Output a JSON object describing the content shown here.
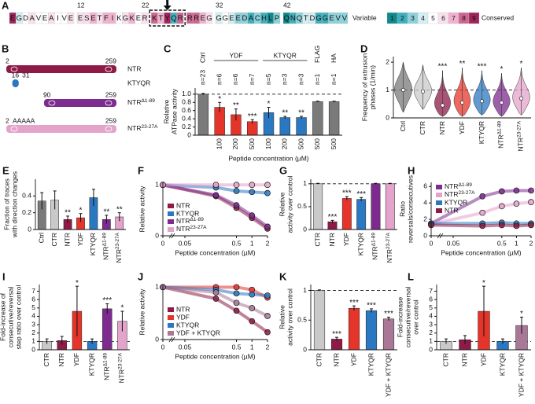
{
  "sequence": {
    "panel": "A",
    "residues": "EGDAVEAIVEESETFIKGKERKTYQRRREGGGEEDACHLPQNQTDGGEVV",
    "scores": [
      9,
      4,
      5,
      6,
      5,
      5,
      6,
      5,
      5,
      6,
      6,
      6,
      7,
      6,
      7,
      7,
      5,
      6,
      7,
      5,
      6,
      8,
      7,
      9,
      2,
      8,
      8,
      8,
      7,
      6,
      4,
      5,
      4,
      3,
      3,
      2,
      3,
      2,
      1,
      3,
      1,
      2,
      3,
      4,
      4,
      2,
      2,
      3,
      3,
      3
    ],
    "position_labels": [
      12,
      22,
      32,
      42
    ],
    "grades": [
      1,
      2,
      3,
      4,
      5,
      6,
      7,
      8,
      9
    ],
    "grade_colors": [
      "#0e8a8c",
      "#3fb0bd",
      "#8dd1db",
      "#d4eef2",
      "#ffffff",
      "#f8e1ec",
      "#efb3cf",
      "#cf6690",
      "#9e245c"
    ],
    "scale_labels": [
      "Variable",
      "Conserved"
    ]
  },
  "constructs": {
    "panel": "B",
    "items": [
      {
        "name": "NTR",
        "start": 2,
        "end": 259,
        "color": "#8e1b47"
      },
      {
        "name": "KTYQR",
        "start": 16,
        "end": 31,
        "color": "#2b78c2"
      },
      {
        "name": "NTRΔ1-89",
        "start": 90,
        "end": 259,
        "color": "#7e2b8f"
      },
      {
        "name": "NTR23-27A",
        "start": 2,
        "end": 259,
        "color": "#e4a3cb",
        "mutation": "AAAAA"
      }
    ]
  },
  "chart_data": [
    {
      "type": "bar",
      "panel": "C",
      "ylabel": [
        "Relative",
        "ATPase activity"
      ],
      "xlabel": "Peptide concentration (µM)",
      "ylim": [
        0,
        1.15
      ],
      "yticks": [
        0,
        0.2,
        0.4,
        0.6,
        0.8,
        {
          "value": 1,
          "label": "1.0"
        }
      ],
      "refline": 1,
      "series": [
        {
          "name": "Ctrl",
          "color": "#7a7a7a",
          "categories": [
            null
          ],
          "values": [
            1.0
          ],
          "errors": [
            0.02
          ],
          "n_labels": [
            "n=23"
          ],
          "stars": [
            null
          ]
        },
        {
          "name": "YDF",
          "color": "#e5352b",
          "categories": [
            "100",
            "200",
            "500"
          ],
          "values": [
            0.68,
            0.5,
            0.33
          ],
          "errors": [
            0.12,
            0.14,
            0.05
          ],
          "n_labels": [
            "n=6",
            "n=6",
            "n=7"
          ],
          "stars": [
            "*",
            "**",
            "***"
          ]
        },
        {
          "name": "KTYQR",
          "color": "#2b78c2",
          "categories": [
            "100",
            "200",
            "500"
          ],
          "values": [
            0.55,
            0.43,
            0.43
          ],
          "errors": [
            0.13,
            0.03,
            0.03
          ],
          "n_labels": [
            "n=5",
            "n=3",
            "n=3"
          ],
          "stars": [
            "*",
            "**",
            "**"
          ]
        },
        {
          "name": "FLAG",
          "color": "#7a7a7a",
          "categories": [
            "500"
          ],
          "values": [
            0.82
          ],
          "errors": [
            0.01
          ],
          "n_labels": [
            "n=1"
          ],
          "stars": [
            null
          ]
        },
        {
          "name": "HA",
          "color": "#7a7a7a",
          "categories": [
            "500"
          ],
          "values": [
            0.82
          ],
          "errors": [
            0.01
          ],
          "n_labels": [
            "n=1"
          ],
          "stars": [
            null
          ]
        }
      ]
    },
    {
      "type": "violin",
      "panel": "D",
      "ylabel": [
        "Frequency of extrusion",
        "phases (1/min)"
      ],
      "ylim": [
        0,
        2.2
      ],
      "yticks": [
        0,
        1,
        2
      ],
      "refline": 1,
      "categories": [
        "Ctrl",
        "CTR",
        "NTR",
        "YDF",
        "KTYQR",
        "NTRΔ1-89",
        "NTR23-27A"
      ],
      "values": [
        1.0,
        0.95,
        0.45,
        0.55,
        0.6,
        0.55,
        0.7
      ],
      "ranges": [
        [
          0.2,
          2.0
        ],
        [
          0.3,
          1.9
        ],
        [
          0.05,
          1.7
        ],
        [
          0.05,
          1.8
        ],
        [
          0.1,
          1.7
        ],
        [
          0.05,
          1.6
        ],
        [
          0.1,
          1.8
        ]
      ],
      "colors": [
        "#7a7a7a",
        "#c9c9c9",
        "#8e1b47",
        "#e5352b",
        "#2b78c2",
        "#7e2b8f",
        "#e4a3cb"
      ],
      "stars": [
        null,
        null,
        "***",
        "**",
        "***",
        "*",
        "*"
      ]
    },
    {
      "type": "bar",
      "panel": "E",
      "ylabel": [
        "Fraction of traces",
        "with direction changes"
      ],
      "ylim": [
        0,
        0.6
      ],
      "yticks": [
        0,
        0.2,
        0.4
      ],
      "categories": [
        "Ctrl",
        "CTR",
        "NTR",
        "YDF",
        "KTYQR",
        "NTRΔ1-89",
        "NTR23-27A"
      ],
      "values": [
        0.34,
        0.35,
        0.12,
        0.14,
        0.38,
        0.12,
        0.15
      ],
      "errors": [
        0.1,
        0.11,
        0.04,
        0.05,
        0.1,
        0.05,
        0.05
      ],
      "colors": [
        "#7a7a7a",
        "#c9c9c9",
        "#8e1b47",
        "#e5352b",
        "#2b78c2",
        "#7e2b8f",
        "#e4a3cb"
      ],
      "stars": [
        null,
        null,
        "**",
        "*",
        null,
        "**",
        "**"
      ]
    },
    {
      "type": "line",
      "panel": "F",
      "ylabel": [
        "Relative activity"
      ],
      "xlabel": "Peptide concentration (µM)",
      "xscale": "log",
      "xlim": [
        0,
        2
      ],
      "xticks": [
        0,
        0.05,
        0.5,
        1,
        2
      ],
      "ylim": [
        0,
        1.05
      ],
      "yticks": [
        0,
        1
      ],
      "x": [
        0,
        0.2,
        0.5,
        1,
        2
      ],
      "legend": "lower left",
      "series": [
        {
          "name": "NTR",
          "color": "#8e1b47",
          "values": [
            1.0,
            0.78,
            0.55,
            0.35,
            0.14
          ]
        },
        {
          "name": "KTYQR",
          "color": "#2b78c2",
          "values": [
            1.0,
            0.95,
            0.88,
            0.86,
            0.84
          ]
        },
        {
          "name": "NTRΔ1-89",
          "color": "#7e2b8f",
          "values": [
            1.0,
            0.8,
            0.6,
            0.4,
            0.18
          ]
        },
        {
          "name": "NTR23-27A",
          "color": "#e4a3cb",
          "values": [
            1.0,
            1.0,
            1.0,
            1.0,
            1.0
          ]
        }
      ]
    },
    {
      "type": "bar",
      "panel": "G",
      "ylabel": [
        "Relative",
        "activity over control"
      ],
      "ylim": [
        0,
        1.1
      ],
      "yticks": [
        0,
        0.5,
        1
      ],
      "refline": 1,
      "categories": [
        "CTR",
        "NTR",
        "YDF",
        "KTYQR",
        "NTRΔ1-89",
        "NTR23-27A"
      ],
      "values": [
        1.0,
        0.17,
        0.68,
        0.66,
        1.0,
        1.0
      ],
      "errors": [
        0.01,
        0.03,
        0.04,
        0.04,
        0.01,
        0.01
      ],
      "colors": [
        "#c9c9c9",
        "#8e1b47",
        "#e5352b",
        "#2b78c2",
        "#7e2b8f",
        "#e4a3cb"
      ],
      "stars": [
        null,
        "***",
        "***",
        "***",
        null,
        null
      ]
    },
    {
      "type": "line",
      "panel": "H",
      "ylabel": [
        "Ratio",
        "reversals/consecutives"
      ],
      "xlabel": "Peptide concentration (µM)",
      "xscale": "log",
      "xlim": [
        0,
        2
      ],
      "xticks": [
        0,
        0.05,
        0.5,
        1,
        2
      ],
      "ylim": [
        0,
        6.5
      ],
      "yticks": [
        0,
        2,
        4,
        6
      ],
      "x": [
        0,
        0.2,
        0.5,
        1,
        2
      ],
      "legend": "upper left",
      "series": [
        {
          "name": "NTRΔ1-89",
          "color": "#7e2b8f",
          "values": [
            1.5,
            4.8,
            5.4,
            5.5,
            5.5
          ]
        },
        {
          "name": "NTR23-27A",
          "color": "#e4a3cb",
          "values": [
            1.4,
            2.8,
            3.6,
            3.9,
            4.1
          ]
        },
        {
          "name": "KTYQR",
          "color": "#2b78c2",
          "values": [
            1.5,
            1.5,
            1.6,
            1.5,
            1.5
          ]
        },
        {
          "name": "NTR",
          "color": "#8e1b47",
          "values": [
            1.3,
            1.2,
            1.3,
            1.2,
            1.3
          ]
        }
      ]
    },
    {
      "type": "bar",
      "panel": "I",
      "ylabel": [
        "Fold-increase of",
        "consecutive/reversal",
        "step ratio over control"
      ],
      "ylim": [
        0,
        7.8
      ],
      "yticks": [
        0,
        1,
        2,
        3,
        4,
        5,
        6,
        7
      ],
      "refline": 1,
      "categories": [
        "CTR",
        "NTR",
        "YDF",
        "KTYQR",
        "NTRΔ1-89",
        "NTR23-27A"
      ],
      "values": [
        1.0,
        1.1,
        4.6,
        1.0,
        4.9,
        3.4
      ],
      "errors": [
        0.3,
        0.5,
        3.0,
        0.3,
        0.6,
        1.2
      ],
      "colors": [
        "#c9c9c9",
        "#8e1b47",
        "#e5352b",
        "#2b78c2",
        "#7e2b8f",
        "#e4a3cb"
      ],
      "stars": [
        null,
        null,
        "*",
        null,
        "***",
        "*"
      ]
    },
    {
      "type": "line",
      "panel": "J",
      "ylabel": [
        "Relative activity"
      ],
      "xlabel": "Peptide concentration (µM)",
      "xscale": "log",
      "xlim": [
        0,
        2
      ],
      "xticks": [
        0,
        0.05,
        0.5,
        1,
        2
      ],
      "ylim": [
        0,
        1.05
      ],
      "yticks": [
        0,
        1
      ],
      "x": [
        0,
        0.2,
        0.5,
        1,
        2
      ],
      "legend": "lower left",
      "series": [
        {
          "name": "NTR",
          "color": "#8e1b47",
          "values": [
            1.0,
            0.78,
            0.55,
            0.35,
            0.14
          ]
        },
        {
          "name": "YDF",
          "color": "#e5352b",
          "values": [
            1.0,
            1.0,
            1.0,
            0.95,
            0.8
          ]
        },
        {
          "name": "KTYQR",
          "color": "#2b78c2",
          "values": [
            1.0,
            0.95,
            0.88,
            0.86,
            0.84
          ]
        },
        {
          "name": "YDF + KTYQR",
          "color": "#a87896",
          "values": [
            1.0,
            0.9,
            0.7,
            0.6,
            0.45
          ]
        }
      ]
    },
    {
      "type": "bar",
      "panel": "K",
      "ylabel": [
        "Relative",
        "activity over control"
      ],
      "ylim": [
        0,
        1.1
      ],
      "yticks": [
        0,
        0.5,
        1
      ],
      "refline": 1,
      "categories": [
        "CTR",
        "NTR",
        "YDF",
        "KTYQR",
        "YDF + KTYQR"
      ],
      "values": [
        1.0,
        0.18,
        0.7,
        0.66,
        0.52
      ],
      "errors": [
        0.01,
        0.03,
        0.04,
        0.03,
        0.03
      ],
      "colors": [
        "#c9c9c9",
        "#8e1b47",
        "#e5352b",
        "#2b78c2",
        "#a87896"
      ],
      "stars": [
        null,
        "***",
        "***",
        "***",
        "***"
      ]
    },
    {
      "type": "bar",
      "panel": "L",
      "ylabel": [
        "Fold-increase",
        "consecutive/reversal",
        "over control"
      ],
      "ylim": [
        0,
        7.8
      ],
      "yticks": [
        0,
        1,
        2,
        3,
        4,
        5,
        6,
        7
      ],
      "refline": 1,
      "categories": [
        "CTR",
        "NTR",
        "YDF",
        "KTYQR",
        "YDF + KTYQR"
      ],
      "values": [
        1.0,
        1.2,
        4.6,
        1.0,
        2.9
      ],
      "errors": [
        0.3,
        0.5,
        3.0,
        0.3,
        1.0
      ],
      "colors": [
        "#c9c9c9",
        "#8e1b47",
        "#e5352b",
        "#2b78c2",
        "#a87896"
      ],
      "stars": [
        null,
        null,
        "*",
        null,
        "*"
      ]
    }
  ]
}
